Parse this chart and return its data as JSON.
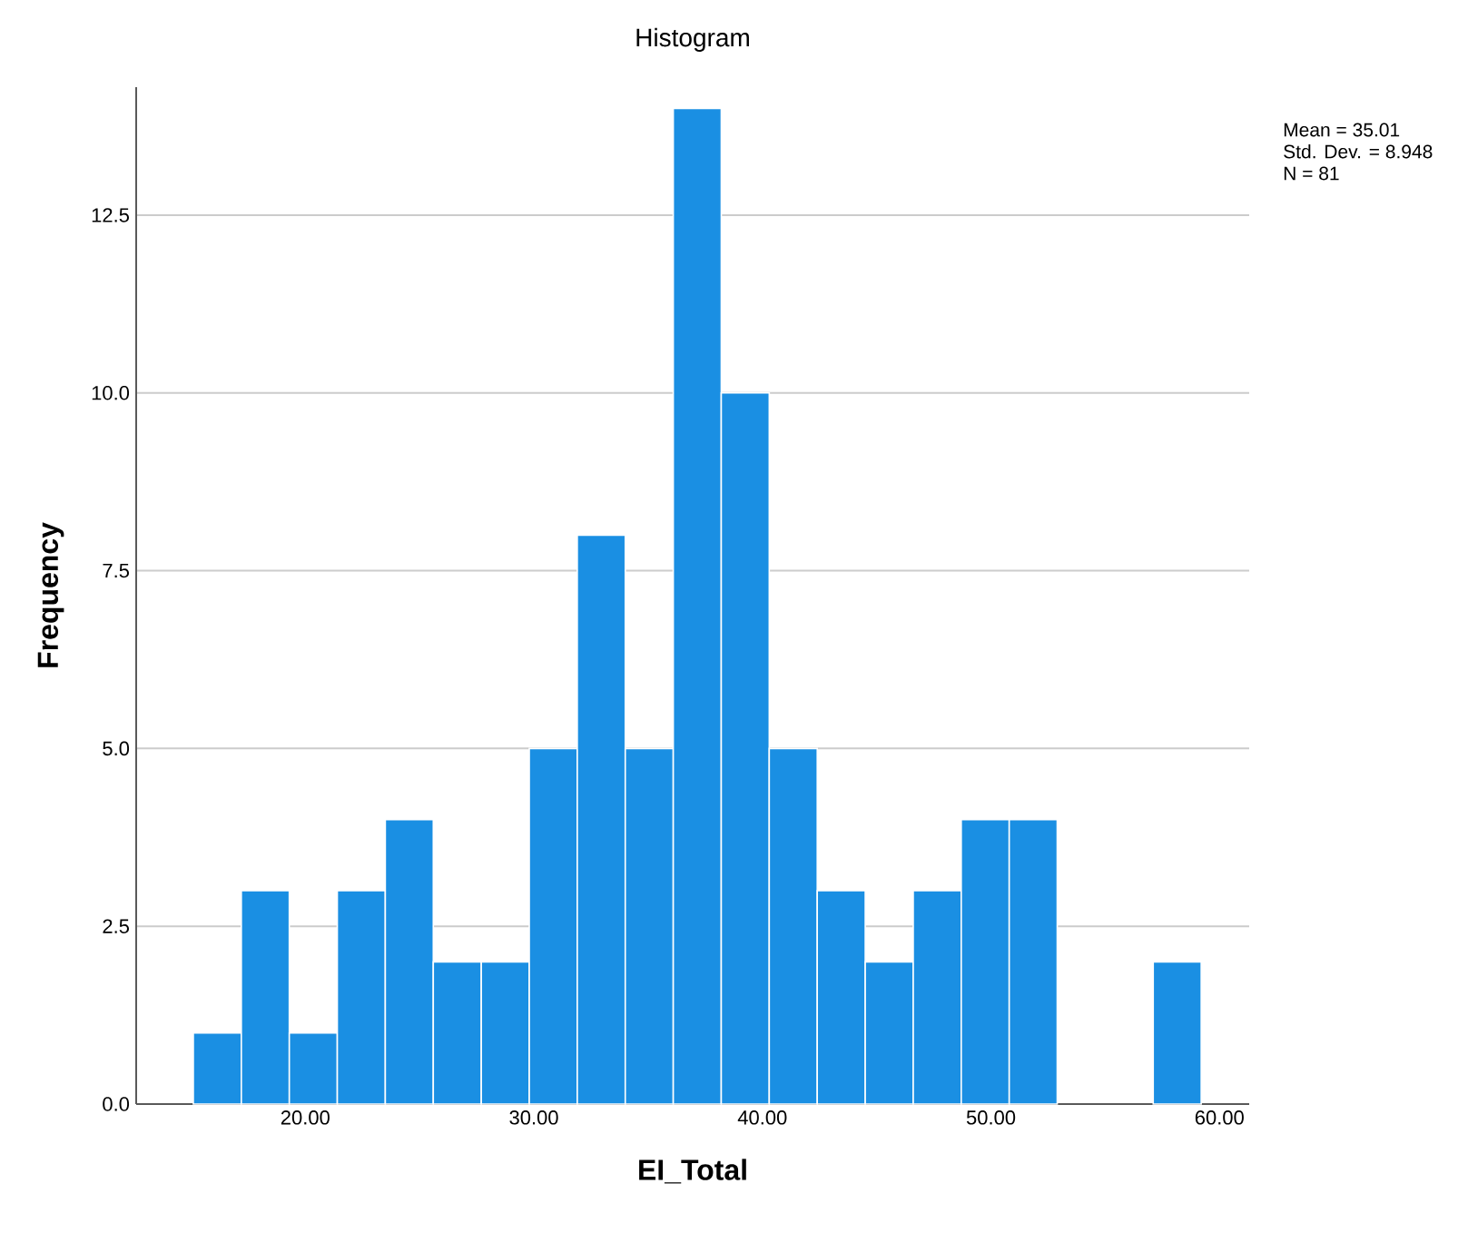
{
  "chart_data": {
    "type": "histogram",
    "title": "Histogram",
    "xlabel": "EI_Total",
    "ylabel": "Frequency",
    "bins": [
      15.1,
      17.2,
      19.3,
      21.4,
      23.5,
      25.6,
      27.7,
      29.8,
      31.9,
      34.0,
      36.1,
      38.2,
      40.3,
      42.4,
      44.5,
      46.6,
      48.7,
      50.8,
      52.9,
      55.0,
      57.1,
      59.2
    ],
    "values": [
      1,
      3,
      1,
      3,
      4,
      2,
      2,
      5,
      8,
      5,
      14,
      10,
      5,
      3,
      2,
      3,
      4,
      4,
      0,
      0,
      2
    ],
    "color": "#1a8fe3",
    "xlim": [
      12.6,
      61.3
    ],
    "ylim": [
      0,
      14.3
    ],
    "xticks": [
      {
        "value": 20,
        "label": "20.00"
      },
      {
        "value": 30,
        "label": "30.00"
      },
      {
        "value": 40,
        "label": "40.00"
      },
      {
        "value": 50,
        "label": "50.00"
      },
      {
        "value": 60,
        "label": "60.00"
      }
    ],
    "yticks": [
      {
        "value": 0,
        "label": "0.0"
      },
      {
        "value": 2.5,
        "label": "2.5"
      },
      {
        "value": 5,
        "label": "5.0"
      },
      {
        "value": 7.5,
        "label": "7.5"
      },
      {
        "value": 10,
        "label": "10.0"
      },
      {
        "value": 12.5,
        "label": "12.5"
      }
    ],
    "grid": "y",
    "annotations": [
      "Mean = 35.01",
      "Std. Dev. = 8.948",
      "N = 81"
    ]
  }
}
